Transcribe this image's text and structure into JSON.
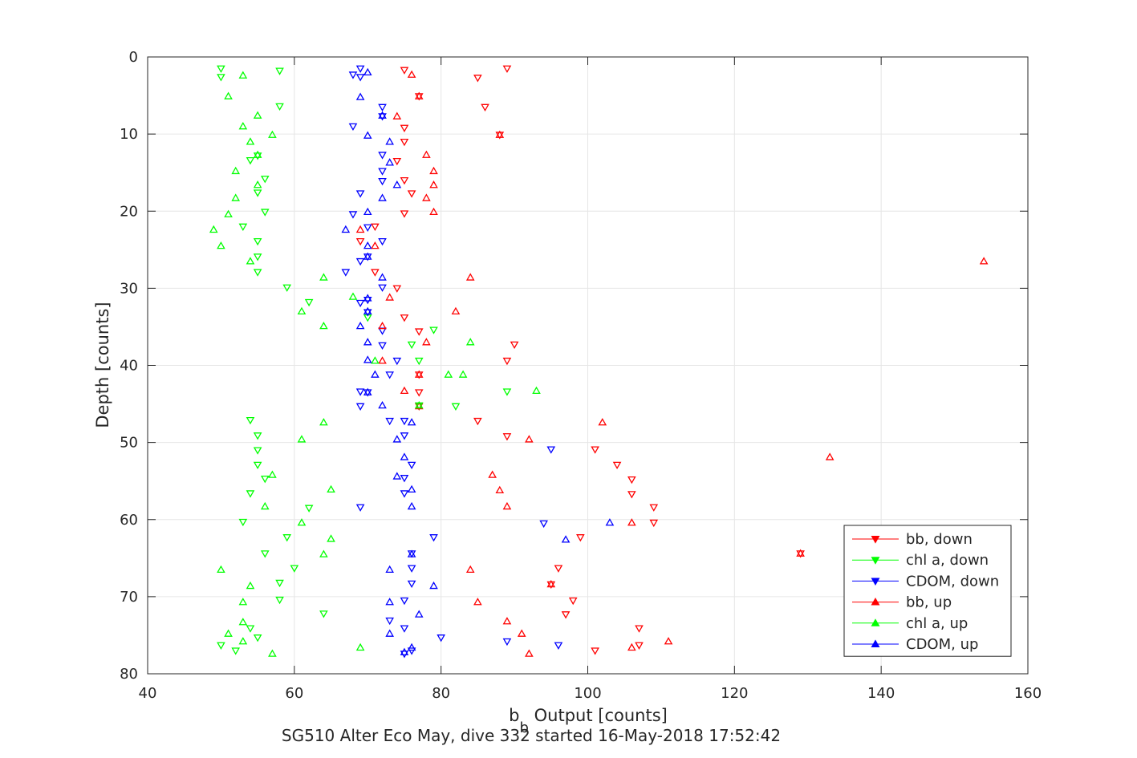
{
  "chart_data": {
    "type": "scatter",
    "title": "",
    "xlabel_main": "b",
    "xlabel_sub": "b",
    "xlabel_rest": " Output [counts]",
    "ylabel": "Depth [counts]",
    "caption": "SG510 Alter Eco May, dive 332 started 16-May-2018 17:52:42",
    "xlim": [
      40,
      160
    ],
    "ylim": [
      0,
      80
    ],
    "y_reversed": true,
    "x_ticks": [
      40,
      60,
      80,
      100,
      120,
      140,
      160
    ],
    "y_ticks": [
      0,
      10,
      20,
      30,
      40,
      50,
      60,
      70,
      80
    ],
    "grid": true,
    "legend_position": "bottom-right",
    "series": [
      {
        "name": "bb, down",
        "color": "#ff0000",
        "marker": "triangle-down",
        "points": [
          [
            89,
            1.5
          ],
          [
            75,
            1.7
          ],
          [
            85,
            2.7
          ],
          [
            86,
            6.5
          ],
          [
            77,
            5.1
          ],
          [
            75,
            9.2
          ],
          [
            88,
            10.1
          ],
          [
            75,
            11.0
          ],
          [
            74,
            13.5
          ],
          [
            75,
            16.0
          ],
          [
            76,
            17.7
          ],
          [
            75,
            20.3
          ],
          [
            71,
            22.0
          ],
          [
            69,
            23.9
          ],
          [
            71,
            27.9
          ],
          [
            74,
            30.0
          ],
          [
            75,
            33.8
          ],
          [
            77,
            35.6
          ],
          [
            90,
            37.3
          ],
          [
            89,
            39.4
          ],
          [
            77,
            41.2
          ],
          [
            77,
            43.5
          ],
          [
            77,
            45.3
          ],
          [
            85,
            47.2
          ],
          [
            89,
            49.2
          ],
          [
            101,
            50.9
          ],
          [
            104,
            52.9
          ],
          [
            106,
            54.8
          ],
          [
            106,
            56.7
          ],
          [
            109,
            58.4
          ],
          [
            109,
            60.4
          ],
          [
            99,
            62.3
          ],
          [
            129,
            64.4
          ],
          [
            96,
            66.3
          ],
          [
            95,
            68.4
          ],
          [
            98,
            70.5
          ],
          [
            97,
            72.3
          ],
          [
            107,
            74.1
          ],
          [
            107,
            76.3
          ],
          [
            101,
            77.0
          ]
        ]
      },
      {
        "name": "chl a, down",
        "color": "#00ff00",
        "marker": "triangle-down",
        "points": [
          [
            50,
            1.5
          ],
          [
            58,
            1.8
          ],
          [
            50,
            2.6
          ],
          [
            58,
            6.4
          ],
          [
            55,
            12.8
          ],
          [
            54,
            13.4
          ],
          [
            56,
            15.8
          ],
          [
            55,
            17.6
          ],
          [
            56,
            20.1
          ],
          [
            53,
            22.0
          ],
          [
            55,
            23.9
          ],
          [
            55,
            25.9
          ],
          [
            55,
            27.9
          ],
          [
            59,
            29.9
          ],
          [
            62,
            31.8
          ],
          [
            70,
            33.8
          ],
          [
            79,
            35.4
          ],
          [
            76,
            37.3
          ],
          [
            77,
            39.4
          ],
          [
            89,
            43.4
          ],
          [
            77,
            45.2
          ],
          [
            82,
            45.3
          ],
          [
            54,
            47.1
          ],
          [
            55,
            49.1
          ],
          [
            55,
            51.0
          ],
          [
            55,
            52.9
          ],
          [
            56,
            54.7
          ],
          [
            54,
            56.6
          ],
          [
            62,
            58.5
          ],
          [
            53,
            60.3
          ],
          [
            59,
            62.3
          ],
          [
            56,
            64.4
          ],
          [
            60,
            66.3
          ],
          [
            58,
            68.2
          ],
          [
            58,
            70.4
          ],
          [
            64,
            72.2
          ],
          [
            54,
            74.1
          ],
          [
            55,
            75.3
          ],
          [
            50,
            76.3
          ],
          [
            52,
            77.0
          ]
        ]
      },
      {
        "name": "CDOM, down",
        "color": "#0000ff",
        "marker": "triangle-down",
        "points": [
          [
            69,
            1.5
          ],
          [
            68,
            2.3
          ],
          [
            69,
            2.6
          ],
          [
            72,
            6.5
          ],
          [
            72,
            7.7
          ],
          [
            68,
            9.0
          ],
          [
            72,
            12.7
          ],
          [
            72,
            14.8
          ],
          [
            72,
            16.1
          ],
          [
            69,
            17.7
          ],
          [
            68,
            20.4
          ],
          [
            70,
            22.1
          ],
          [
            72,
            23.9
          ],
          [
            70,
            25.9
          ],
          [
            69,
            26.5
          ],
          [
            67,
            27.9
          ],
          [
            72,
            29.9
          ],
          [
            70,
            31.5
          ],
          [
            69,
            31.9
          ],
          [
            70,
            33.1
          ],
          [
            72,
            35.5
          ],
          [
            72,
            37.4
          ],
          [
            74,
            39.4
          ],
          [
            73,
            41.2
          ],
          [
            69,
            43.4
          ],
          [
            70,
            43.5
          ],
          [
            69,
            45.3
          ],
          [
            73,
            47.2
          ],
          [
            75,
            47.2
          ],
          [
            75,
            49.1
          ],
          [
            95,
            50.9
          ],
          [
            76,
            52.9
          ],
          [
            75,
            54.6
          ],
          [
            75,
            56.6
          ],
          [
            69,
            58.4
          ],
          [
            94,
            60.5
          ],
          [
            79,
            62.3
          ],
          [
            76,
            64.4
          ],
          [
            76,
            66.3
          ],
          [
            76,
            68.3
          ],
          [
            75,
            70.5
          ],
          [
            73,
            73.1
          ],
          [
            75,
            74.1
          ],
          [
            80,
            75.3
          ],
          [
            89,
            75.8
          ],
          [
            96,
            76.3
          ],
          [
            76,
            77.0
          ],
          [
            75,
            77.4
          ]
        ]
      },
      {
        "name": "bb, up",
        "color": "#ff0000",
        "marker": "triangle-up",
        "points": [
          [
            76,
            2.3
          ],
          [
            77,
            5.1
          ],
          [
            74,
            7.7
          ],
          [
            88,
            10.1
          ],
          [
            78,
            12.7
          ],
          [
            79,
            14.8
          ],
          [
            79,
            16.6
          ],
          [
            78,
            18.3
          ],
          [
            79,
            20.1
          ],
          [
            69,
            22.4
          ],
          [
            71,
            24.5
          ],
          [
            154,
            26.5
          ],
          [
            84,
            28.6
          ],
          [
            73,
            31.2
          ],
          [
            82,
            33.0
          ],
          [
            72,
            34.9
          ],
          [
            78,
            37.0
          ],
          [
            72,
            39.4
          ],
          [
            77,
            41.2
          ],
          [
            75,
            43.3
          ],
          [
            77,
            45.3
          ],
          [
            102,
            47.4
          ],
          [
            92,
            49.6
          ],
          [
            133,
            51.9
          ],
          [
            87,
            54.2
          ],
          [
            88,
            56.2
          ],
          [
            89,
            58.3
          ],
          [
            106,
            60.4
          ],
          [
            129,
            64.4
          ],
          [
            84,
            66.5
          ],
          [
            95,
            68.4
          ],
          [
            85,
            70.7
          ],
          [
            89,
            73.2
          ],
          [
            91,
            74.8
          ],
          [
            111,
            75.8
          ],
          [
            106,
            76.6
          ],
          [
            92,
            77.4
          ]
        ]
      },
      {
        "name": "chl a, up",
        "color": "#00ff00",
        "marker": "triangle-up",
        "points": [
          [
            53,
            2.4
          ],
          [
            51,
            5.1
          ],
          [
            55,
            7.6
          ],
          [
            53,
            9.0
          ],
          [
            57,
            10.1
          ],
          [
            54,
            11.0
          ],
          [
            55,
            12.7
          ],
          [
            52,
            14.8
          ],
          [
            55,
            16.6
          ],
          [
            52,
            18.3
          ],
          [
            51,
            20.4
          ],
          [
            49,
            22.4
          ],
          [
            50,
            24.5
          ],
          [
            54,
            26.5
          ],
          [
            64,
            28.6
          ],
          [
            61,
            33.0
          ],
          [
            68,
            31.1
          ],
          [
            64,
            34.9
          ],
          [
            84,
            37.0
          ],
          [
            71,
            39.4
          ],
          [
            81,
            41.2
          ],
          [
            83,
            41.2
          ],
          [
            93,
            43.3
          ],
          [
            77,
            45.2
          ],
          [
            64,
            47.4
          ],
          [
            61,
            49.6
          ],
          [
            65,
            56.1
          ],
          [
            57,
            54.2
          ],
          [
            56,
            58.3
          ],
          [
            61,
            60.4
          ],
          [
            65,
            62.5
          ],
          [
            64,
            64.5
          ],
          [
            50,
            66.5
          ],
          [
            54,
            68.6
          ],
          [
            53,
            70.7
          ],
          [
            53,
            73.3
          ],
          [
            51,
            74.8
          ],
          [
            53,
            75.8
          ],
          [
            69,
            76.6
          ],
          [
            57,
            77.4
          ]
        ]
      },
      {
        "name": "CDOM, up",
        "color": "#0000ff",
        "marker": "triangle-up",
        "points": [
          [
            70,
            2.0
          ],
          [
            69,
            5.2
          ],
          [
            72,
            7.6
          ],
          [
            70,
            10.2
          ],
          [
            73,
            11.0
          ],
          [
            73,
            13.7
          ],
          [
            74,
            16.6
          ],
          [
            72,
            18.3
          ],
          [
            70,
            20.1
          ],
          [
            67,
            22.4
          ],
          [
            70,
            24.5
          ],
          [
            70,
            25.9
          ],
          [
            72,
            28.6
          ],
          [
            70,
            31.3
          ],
          [
            70,
            33.0
          ],
          [
            69,
            34.9
          ],
          [
            70,
            37.0
          ],
          [
            70,
            39.3
          ],
          [
            71,
            41.2
          ],
          [
            70,
            43.5
          ],
          [
            72,
            45.2
          ],
          [
            76,
            47.4
          ],
          [
            74,
            49.6
          ],
          [
            75,
            51.9
          ],
          [
            74,
            54.4
          ],
          [
            76,
            56.1
          ],
          [
            76,
            58.3
          ],
          [
            103,
            60.4
          ],
          [
            97,
            62.6
          ],
          [
            76,
            64.5
          ],
          [
            73,
            66.5
          ],
          [
            79,
            68.6
          ],
          [
            73,
            70.7
          ],
          [
            77,
            72.3
          ],
          [
            73,
            74.8
          ],
          [
            76,
            76.6
          ],
          [
            75,
            77.2
          ]
        ]
      }
    ]
  }
}
